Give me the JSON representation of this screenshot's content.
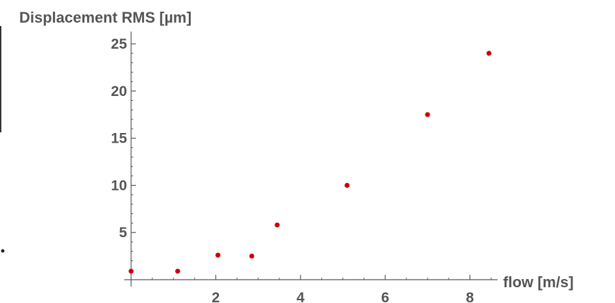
{
  "chart_data": {
    "type": "scatter",
    "title": "",
    "xlabel": "flow [m/s]",
    "ylabel": "Displacement RMS [µm]",
    "xlim": [
      0,
      8.6
    ],
    "ylim": [
      0,
      25
    ],
    "x_ticks": [
      2,
      4,
      6,
      8
    ],
    "y_ticks": [
      5,
      10,
      15,
      20,
      25
    ],
    "marker_color": "#cc0000",
    "grid": false,
    "series": [
      {
        "x": [
          0.0,
          1.1,
          2.05,
          2.85,
          3.45,
          5.1,
          7.0,
          8.45
        ],
        "y": [
          0.9,
          0.9,
          2.6,
          2.5,
          5.8,
          10.0,
          17.5,
          24.0
        ]
      }
    ]
  }
}
